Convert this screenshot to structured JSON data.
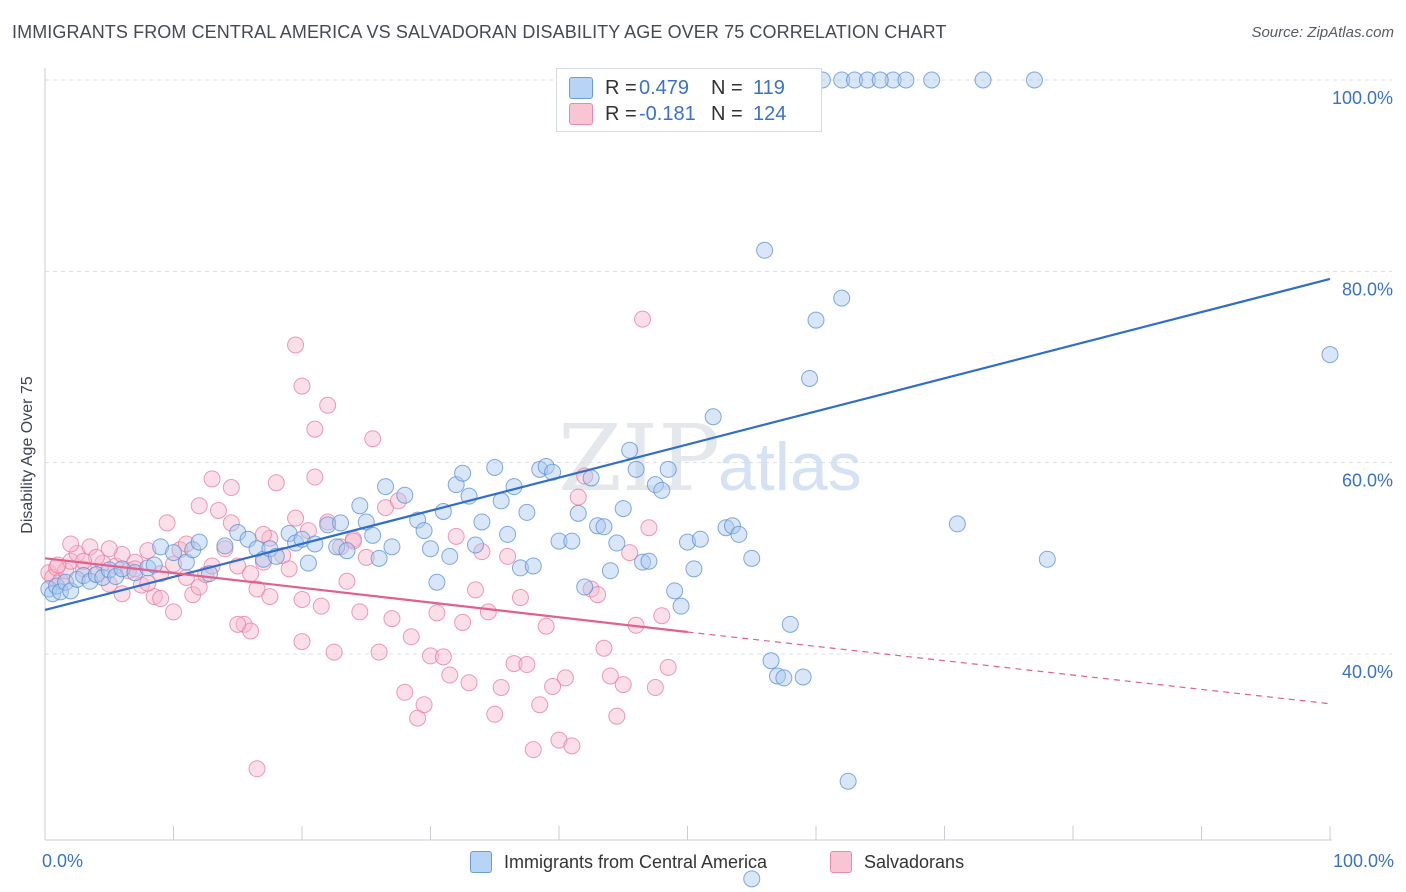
{
  "title": "IMMIGRANTS FROM CENTRAL AMERICA VS SALVADORAN DISABILITY AGE OVER 75 CORRELATION CHART",
  "source": "Source: ZipAtlas.com",
  "watermark": {
    "zip": "ZIP",
    "atlas": "atlas"
  },
  "legend": {
    "series1": {
      "r_label": "R = ",
      "r_value": "0.479",
      "n_label": "N = ",
      "n_value": "119"
    },
    "series2": {
      "r_label": "R = ",
      "r_value": "-0.181",
      "n_label": "N = ",
      "n_value": "124"
    }
  },
  "colors": {
    "blue_fill": "#a8c8f0",
    "blue_stroke": "#5a8fd6",
    "blue_line": "#2f6ecb",
    "pink_fill": "#f6b8cb",
    "pink_stroke": "#e87aa0",
    "pink_line": "#e0608e",
    "axis_label": "#3a72c8",
    "grid": "#d9dde3"
  },
  "chart_data": {
    "type": "scatter",
    "title": "IMMIGRANTS FROM CENTRAL AMERICA VS SALVADORAN DISABILITY AGE OVER 75 CORRELATION CHART",
    "xlabel": "",
    "ylabel": "Disability Age Over 75",
    "xlim": [
      0,
      100
    ],
    "ylim": [
      20,
      102
    ],
    "x_tick_labels": [
      "0.0%",
      "100.0%"
    ],
    "y_tick_labels": [
      "40.0%",
      "60.0%",
      "80.0%",
      "100.0%"
    ],
    "y_ticks": [
      40,
      60,
      80,
      100
    ],
    "grid": true,
    "legend_position": "top-center",
    "series": [
      {
        "name": "Immigrants from Central America",
        "color": "#a8c8f0",
        "trend": {
          "x": [
            0,
            100
          ],
          "y": [
            44.6,
            79.2
          ],
          "style": "solid"
        },
        "points": [
          [
            0.3,
            46.8
          ],
          [
            0.6,
            46.3
          ],
          [
            0.9,
            47.1
          ],
          [
            1.2,
            46.5
          ],
          [
            1.6,
            47.5
          ],
          [
            2.0,
            46.6
          ],
          [
            2.5,
            47.8
          ],
          [
            3.0,
            48.2
          ],
          [
            3.5,
            47.6
          ],
          [
            4.0,
            48.3
          ],
          [
            4.5,
            48.0
          ],
          [
            5.0,
            48.8
          ],
          [
            5.5,
            48.1
          ],
          [
            6.0,
            48.9
          ],
          [
            7.0,
            48.5
          ],
          [
            8.0,
            49.0
          ],
          [
            8.5,
            49.3
          ],
          [
            9.0,
            51.2
          ],
          [
            10.0,
            50.6
          ],
          [
            11.0,
            49.6
          ],
          [
            11.5,
            50.9
          ],
          [
            12.0,
            51.7
          ],
          [
            12.8,
            48.4
          ],
          [
            14.0,
            51.3
          ],
          [
            15.0,
            52.7
          ],
          [
            15.8,
            52.0
          ],
          [
            16.5,
            51.0
          ],
          [
            17.0,
            49.9
          ],
          [
            17.5,
            51.0
          ],
          [
            18.0,
            50.2
          ],
          [
            19.0,
            52.6
          ],
          [
            19.5,
            51.6
          ],
          [
            20.0,
            52.0
          ],
          [
            20.5,
            49.5
          ],
          [
            21.0,
            51.5
          ],
          [
            22.0,
            53.5
          ],
          [
            22.7,
            51.2
          ],
          [
            23.0,
            53.7
          ],
          [
            23.5,
            50.8
          ],
          [
            24.5,
            55.5
          ],
          [
            25.0,
            53.8
          ],
          [
            25.5,
            52.4
          ],
          [
            26.0,
            50.0
          ],
          [
            26.5,
            57.5
          ],
          [
            27.0,
            51.2
          ],
          [
            28.0,
            56.6
          ],
          [
            29.0,
            54.0
          ],
          [
            29.5,
            52.9
          ],
          [
            30.0,
            51.0
          ],
          [
            30.5,
            47.5
          ],
          [
            31.0,
            54.9
          ],
          [
            31.5,
            50.2
          ],
          [
            32.0,
            57.7
          ],
          [
            32.5,
            58.9
          ],
          [
            33.0,
            56.5
          ],
          [
            33.5,
            51.4
          ],
          [
            34.0,
            53.8
          ],
          [
            35.0,
            59.5
          ],
          [
            35.5,
            56.0
          ],
          [
            36.0,
            52.5
          ],
          [
            36.5,
            57.5
          ],
          [
            37.0,
            49.0
          ],
          [
            37.5,
            54.8
          ],
          [
            38.0,
            49.2
          ],
          [
            38.5,
            59.3
          ],
          [
            39.0,
            59.6
          ],
          [
            39.5,
            59.0
          ],
          [
            40.0,
            51.8
          ],
          [
            41.0,
            51.8
          ],
          [
            41.5,
            54.7
          ],
          [
            42.0,
            47.0
          ],
          [
            42.5,
            58.4
          ],
          [
            43.0,
            53.4
          ],
          [
            43.5,
            53.3
          ],
          [
            44.0,
            48.7
          ],
          [
            44.5,
            51.6
          ],
          [
            45.0,
            55.2
          ],
          [
            45.5,
            61.3
          ],
          [
            46.0,
            59.3
          ],
          [
            46.5,
            49.6
          ],
          [
            47.0,
            49.7
          ],
          [
            47.5,
            57.7
          ],
          [
            48.0,
            57.1
          ],
          [
            48.5,
            59.3
          ],
          [
            49.0,
            46.6
          ],
          [
            49.5,
            45.0
          ],
          [
            50.0,
            51.7
          ],
          [
            50.5,
            48.9
          ],
          [
            51.0,
            52.0
          ],
          [
            52.0,
            64.8
          ],
          [
            53.0,
            53.2
          ],
          [
            53.5,
            53.4
          ],
          [
            54.0,
            52.5
          ],
          [
            55.0,
            50.0
          ],
          [
            56.0,
            82.2
          ],
          [
            56.5,
            39.3
          ],
          [
            57.0,
            37.7
          ],
          [
            57.5,
            37.5
          ],
          [
            58.0,
            43.1
          ],
          [
            59.0,
            37.6
          ],
          [
            59.5,
            68.8
          ],
          [
            60.0,
            74.9
          ],
          [
            62.0,
            77.2
          ],
          [
            62.5,
            26.7
          ],
          [
            55.0,
            16.5
          ],
          [
            59.0,
            100.0
          ],
          [
            60.5,
            100.0
          ],
          [
            62.0,
            100.0
          ],
          [
            63.0,
            100.0
          ],
          [
            64.0,
            100.0
          ],
          [
            66.0,
            100.0
          ],
          [
            67.0,
            100.0
          ],
          [
            69.0,
            100.0
          ],
          [
            73.0,
            100.0
          ],
          [
            77.0,
            100.0
          ],
          [
            71.0,
            53.6
          ],
          [
            78.0,
            49.9
          ],
          [
            100.0,
            71.3
          ],
          [
            65.0,
            100.0
          ]
        ]
      },
      {
        "name": "Salvadorans",
        "color": "#f6b8cb",
        "trend": {
          "x": [
            0,
            50
          ],
          "y": [
            50.0,
            42.3
          ],
          "style": "solid",
          "dashed_to": [
            100,
            34.8
          ]
        },
        "points": [
          [
            0.3,
            48.5
          ],
          [
            0.6,
            48.0
          ],
          [
            0.9,
            49.0
          ],
          [
            1.2,
            47.6
          ],
          [
            1.6,
            48.7
          ],
          [
            2.0,
            49.7
          ],
          [
            2.5,
            50.5
          ],
          [
            3.0,
            48.9
          ],
          [
            3.5,
            51.2
          ],
          [
            4.0,
            48.3
          ],
          [
            4.5,
            49.5
          ],
          [
            5.0,
            47.3
          ],
          [
            5.5,
            49.2
          ],
          [
            6.0,
            50.4
          ],
          [
            6.5,
            48.7
          ],
          [
            7.0,
            49.6
          ],
          [
            7.5,
            47.2
          ],
          [
            8.0,
            50.8
          ],
          [
            8.5,
            46.0
          ],
          [
            9.0,
            48.4
          ],
          [
            9.5,
            53.7
          ],
          [
            10.0,
            49.4
          ],
          [
            10.5,
            50.9
          ],
          [
            11.0,
            51.5
          ],
          [
            11.5,
            46.2
          ],
          [
            12.0,
            47.0
          ],
          [
            12.5,
            48.3
          ],
          [
            13.0,
            49.2
          ],
          [
            13.5,
            55.0
          ],
          [
            14.0,
            51.0
          ],
          [
            14.5,
            53.7
          ],
          [
            15.0,
            49.2
          ],
          [
            15.5,
            43.1
          ],
          [
            16.0,
            48.4
          ],
          [
            16.5,
            46.8
          ],
          [
            17.0,
            49.6
          ],
          [
            17.5,
            52.1
          ],
          [
            18.0,
            57.9
          ],
          [
            18.5,
            50.3
          ],
          [
            19.0,
            48.9
          ],
          [
            19.5,
            54.2
          ],
          [
            20.0,
            45.7
          ],
          [
            20.5,
            52.9
          ],
          [
            21.0,
            58.5
          ],
          [
            21.5,
            45.0
          ],
          [
            22.0,
            53.8
          ],
          [
            22.5,
            40.2
          ],
          [
            23.0,
            51.2
          ],
          [
            23.5,
            47.6
          ],
          [
            24.0,
            52.0
          ],
          [
            24.5,
            44.4
          ],
          [
            25.0,
            50.1
          ],
          [
            25.5,
            62.5
          ],
          [
            26.0,
            40.2
          ],
          [
            26.5,
            55.3
          ],
          [
            27.0,
            43.7
          ],
          [
            27.5,
            56.0
          ],
          [
            28.0,
            36.0
          ],
          [
            28.5,
            41.8
          ],
          [
            29.0,
            33.3
          ],
          [
            29.5,
            34.7
          ],
          [
            30.0,
            39.8
          ],
          [
            30.5,
            44.3
          ],
          [
            31.0,
            39.7
          ],
          [
            31.5,
            37.8
          ],
          [
            32.0,
            52.3
          ],
          [
            32.5,
            43.3
          ],
          [
            33.0,
            37.0
          ],
          [
            33.5,
            46.7
          ],
          [
            34.0,
            50.7
          ],
          [
            34.5,
            44.4
          ],
          [
            35.0,
            33.7
          ],
          [
            35.5,
            36.5
          ],
          [
            36.0,
            50.2
          ],
          [
            36.5,
            39.0
          ],
          [
            37.0,
            45.9
          ],
          [
            37.5,
            38.9
          ],
          [
            38.0,
            30.0
          ],
          [
            38.5,
            34.7
          ],
          [
            39.0,
            42.9
          ],
          [
            39.5,
            36.6
          ],
          [
            40.0,
            31.0
          ],
          [
            40.5,
            37.5
          ],
          [
            41.0,
            30.4
          ],
          [
            41.5,
            56.4
          ],
          [
            42.0,
            58.6
          ],
          [
            42.5,
            46.8
          ],
          [
            43.0,
            46.2
          ],
          [
            43.5,
            40.6
          ],
          [
            44.0,
            37.7
          ],
          [
            44.5,
            33.5
          ],
          [
            45.0,
            36.8
          ],
          [
            45.5,
            50.6
          ],
          [
            46.0,
            43.0
          ],
          [
            46.5,
            75.0
          ],
          [
            47.0,
            53.2
          ],
          [
            47.5,
            36.5
          ],
          [
            48.0,
            44.0
          ],
          [
            48.5,
            38.6
          ],
          [
            17.0,
            52.5
          ],
          [
            19.5,
            72.3
          ],
          [
            20.0,
            68.0
          ],
          [
            21.0,
            63.5
          ],
          [
            22.0,
            66.0
          ],
          [
            20.0,
            41.3
          ],
          [
            17.5,
            46.0
          ],
          [
            16.0,
            42.4
          ],
          [
            15.0,
            43.1
          ],
          [
            14.5,
            57.4
          ],
          [
            13.0,
            58.3
          ],
          [
            12.0,
            55.5
          ],
          [
            11.0,
            48.0
          ],
          [
            10.0,
            44.4
          ],
          [
            9.0,
            45.8
          ],
          [
            8.0,
            47.4
          ],
          [
            7.0,
            48.9
          ],
          [
            6.0,
            46.3
          ],
          [
            5.0,
            51.0
          ],
          [
            4.0,
            50.1
          ],
          [
            3.0,
            49.7
          ],
          [
            2.0,
            51.5
          ],
          [
            1.0,
            49.3
          ],
          [
            16.5,
            28.0
          ],
          [
            24.0,
            51.8
          ]
        ]
      }
    ]
  },
  "bottom_legend": {
    "series1_label": "Immigrants from Central America",
    "series2_label": "Salvadorans"
  }
}
